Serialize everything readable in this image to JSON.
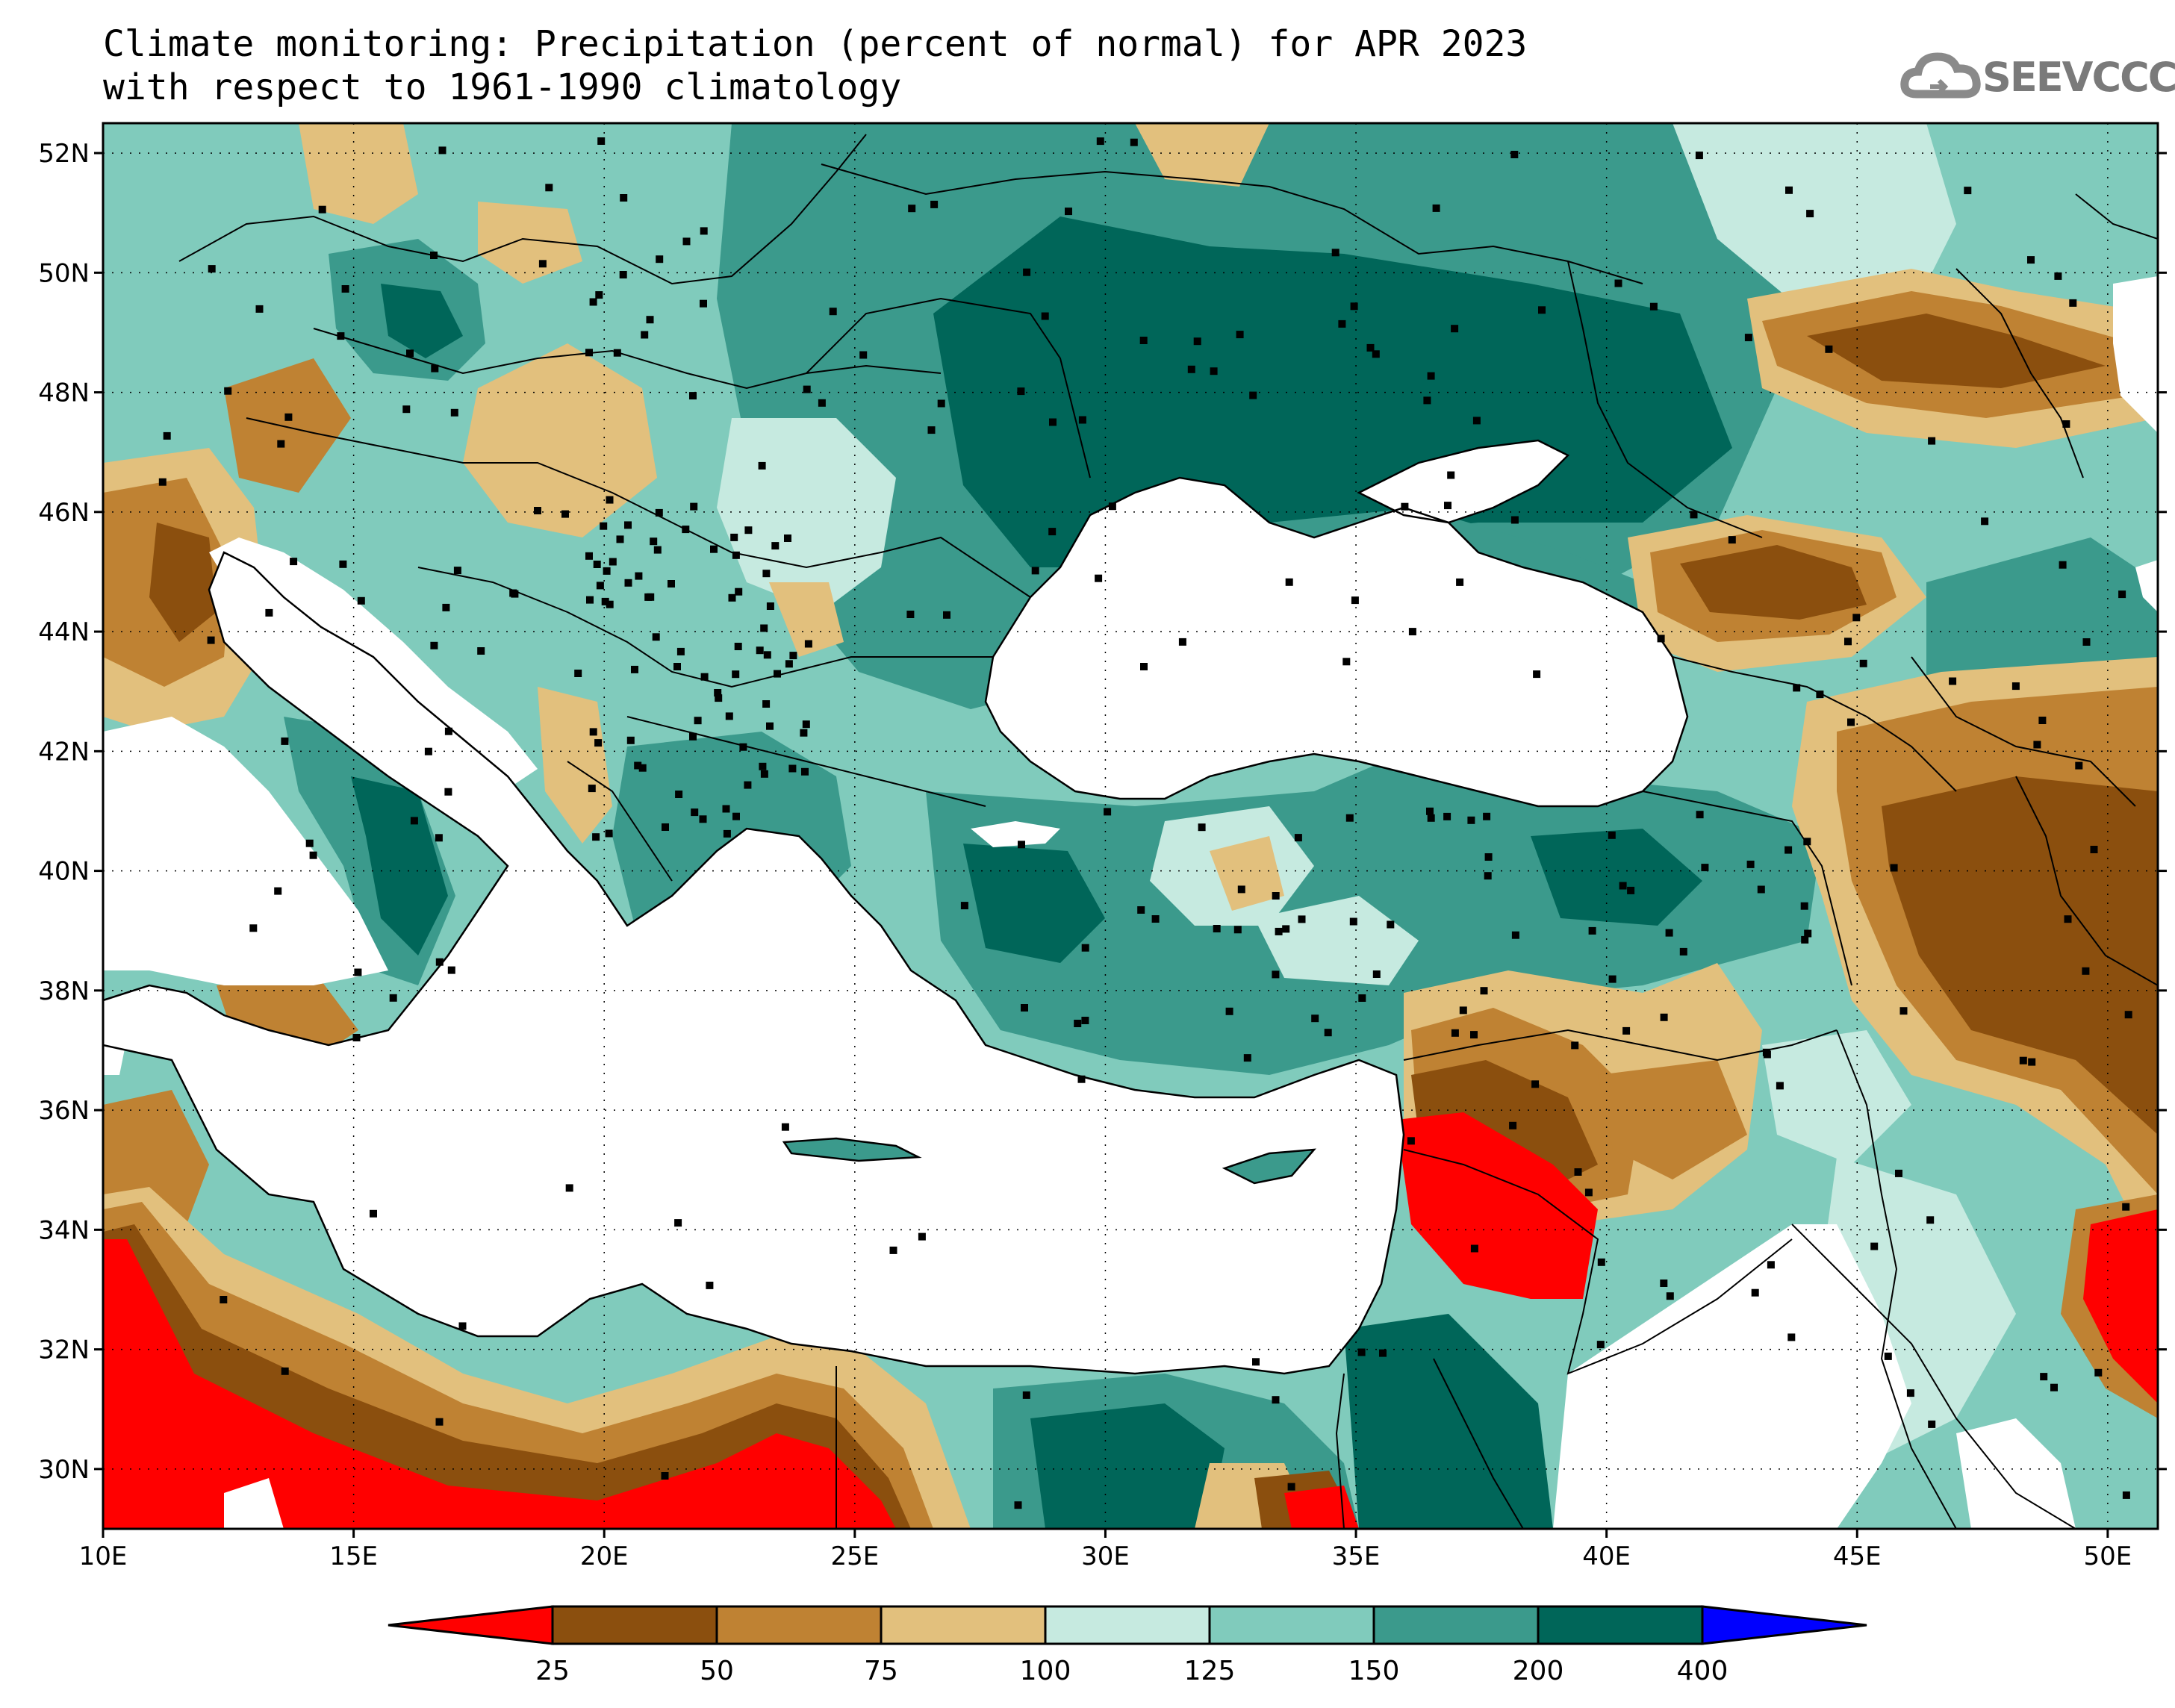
{
  "title": {
    "line1": "Climate monitoring: Precipitation (percent of normal) for APR 2023",
    "line2": "with respect to 1961-1990 climatology"
  },
  "logo": {
    "text": "SEEVCCC",
    "icon": "cloud-icon"
  },
  "map": {
    "lon_range": [
      10,
      51
    ],
    "lat_range": [
      29,
      52.5
    ],
    "lat_ticks": [
      {
        "value": 52,
        "label": "52N"
      },
      {
        "value": 50,
        "label": "50N"
      },
      {
        "value": 48,
        "label": "48N"
      },
      {
        "value": 46,
        "label": "46N"
      },
      {
        "value": 44,
        "label": "44N"
      },
      {
        "value": 42,
        "label": "42N"
      },
      {
        "value": 40,
        "label": "40N"
      },
      {
        "value": 38,
        "label": "38N"
      },
      {
        "value": 36,
        "label": "36N"
      },
      {
        "value": 34,
        "label": "34N"
      },
      {
        "value": 32,
        "label": "32N"
      },
      {
        "value": 30,
        "label": "30N"
      }
    ],
    "lon_ticks": [
      {
        "value": 10,
        "label": "10E"
      },
      {
        "value": 15,
        "label": "15E"
      },
      {
        "value": 20,
        "label": "20E"
      },
      {
        "value": 25,
        "label": "25E"
      },
      {
        "value": 30,
        "label": "30E"
      },
      {
        "value": 35,
        "label": "35E"
      },
      {
        "value": 40,
        "label": "40E"
      },
      {
        "value": 45,
        "label": "45E"
      },
      {
        "value": 50,
        "label": "50E"
      }
    ],
    "grid": true
  },
  "colorbar": {
    "colors": [
      "#ff0000",
      "#8b4f0e",
      "#bf8233",
      "#e2c07d",
      "#c6eae0",
      "#80cbbc",
      "#3b9a8c",
      "#006659",
      "#0000ff"
    ],
    "labels": [
      "25",
      "50",
      "75",
      "100",
      "125",
      "150",
      "200",
      "400"
    ]
  }
}
